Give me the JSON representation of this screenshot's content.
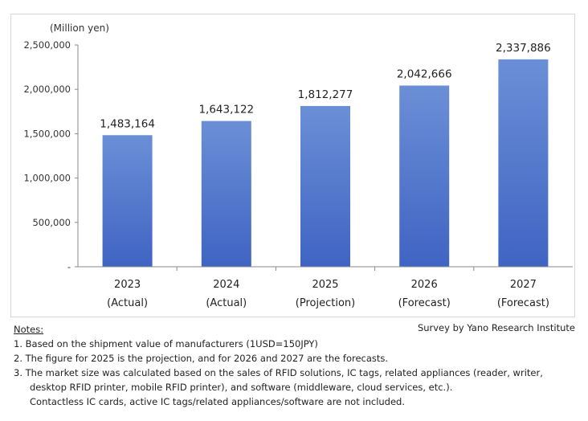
{
  "chart_data": {
    "type": "bar",
    "unit_label": "(Million  yen)",
    "categories": [
      {
        "year": "2023",
        "status": "(Actual)"
      },
      {
        "year": "2024",
        "status": "(Actual)"
      },
      {
        "year": "2025",
        "status": "(Projection)"
      },
      {
        "year": "2026",
        "status": "(Forecast)"
      },
      {
        "year": "2027",
        "status": "(Forecast)"
      }
    ],
    "values": [
      1483164,
      1643122,
      1812277,
      2042666,
      2337886
    ],
    "value_labels": [
      "1,483,164",
      "1,643,122",
      "1,812,277",
      "2,042,666",
      "2,337,886"
    ],
    "ylim": [
      0,
      2500000
    ],
    "yticks": [
      0,
      500000,
      1000000,
      1500000,
      2000000,
      2500000
    ],
    "ytick_labels": [
      "-",
      "500,000",
      "1,000,000",
      "1,500,000",
      "2,000,000",
      "2,500,000"
    ],
    "grid": false,
    "bar_color_top": "#6b8fd6",
    "bar_color_bottom": "#3f64c3"
  },
  "source": "Survey by Yano Research Institute",
  "notes": {
    "title": "Notes:",
    "items": [
      "1.  Based on the shipment value of manufacturers (1USD=150JPY)",
      "2.  The figure for 2025 is the projection, and for 2026 and 2027 are the forecasts.",
      "3.  The market size was calculated based on the sales of RFID solutions, IC tags, related appliances (reader, writer,"
    ],
    "continuation": [
      "desktop RFID printer, mobile RFID printer), and software (middleware, cloud services, etc.).",
      "Contactless IC cards, active IC tags/related appliances/software are not included."
    ]
  }
}
